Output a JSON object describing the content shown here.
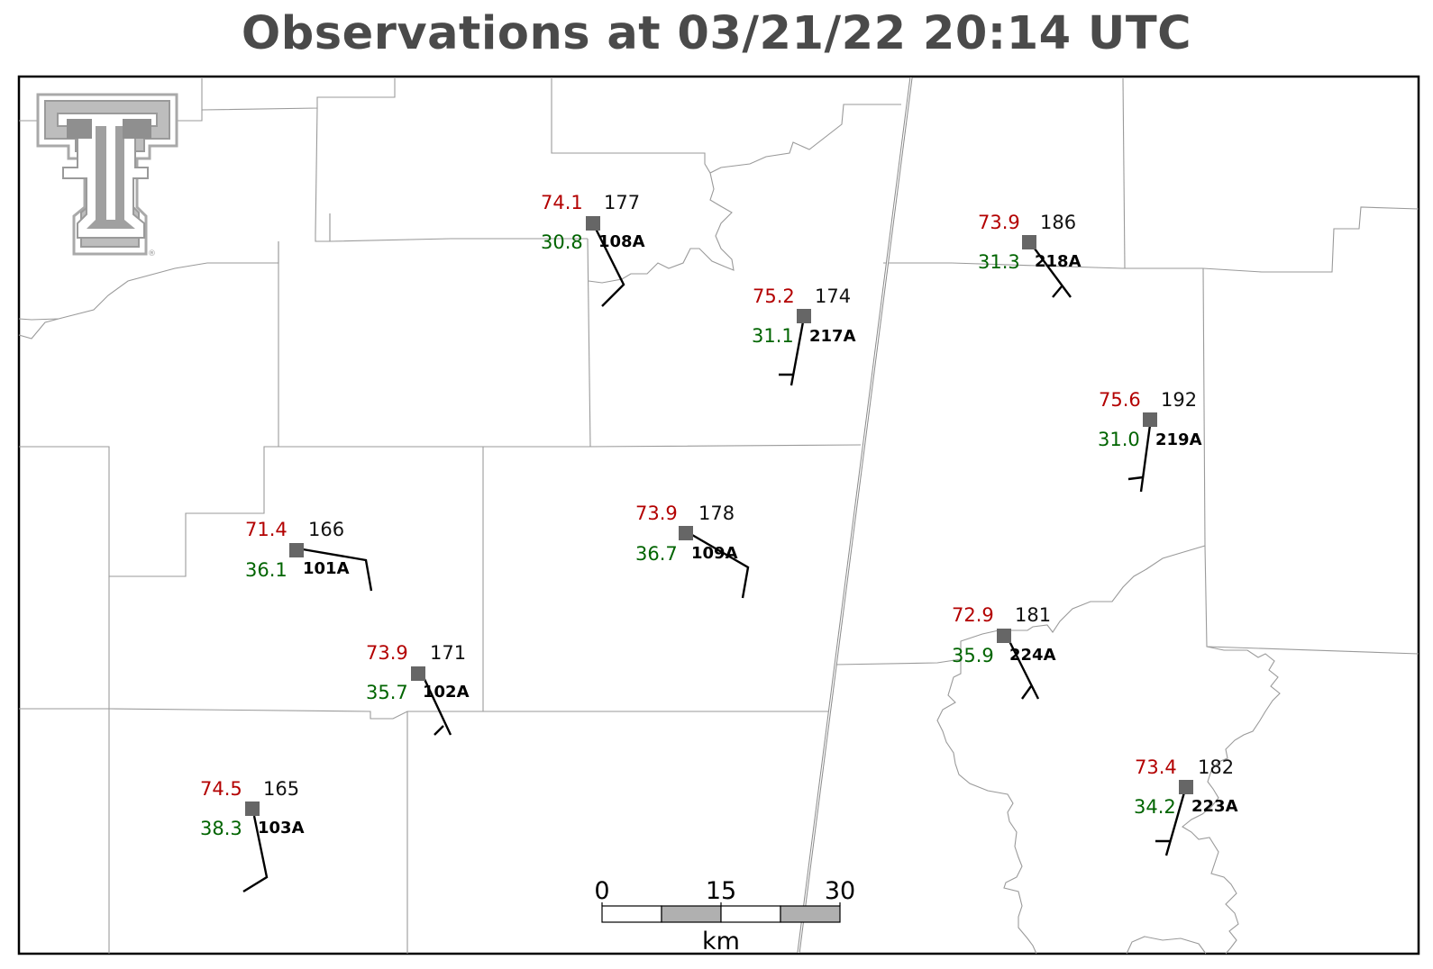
{
  "title": "Observations at 03/21/22 20:14 UTC",
  "logo": {
    "name": "Texas Tech Double T",
    "mark": "®"
  },
  "colors": {
    "temperature": "#b30000",
    "dewpoint": "#006400",
    "pressure": "#111111",
    "station_marker": "#666666",
    "title": "#4a4a4a"
  },
  "scale_bar": {
    "ticks": [
      "0",
      "15",
      "30"
    ],
    "unit": "km"
  },
  "stations": [
    {
      "id": "108A",
      "temp": "74.1",
      "dewpoint": "30.8",
      "pressure": "177"
    },
    {
      "id": "217A",
      "temp": "75.2",
      "dewpoint": "31.1",
      "pressure": "174"
    },
    {
      "id": "218A",
      "temp": "73.9",
      "dewpoint": "31.3",
      "pressure": "186"
    },
    {
      "id": "219A",
      "temp": "75.6",
      "dewpoint": "31.0",
      "pressure": "192"
    },
    {
      "id": "101A",
      "temp": "71.4",
      "dewpoint": "36.1",
      "pressure": "166"
    },
    {
      "id": "109A",
      "temp": "73.9",
      "dewpoint": "36.7",
      "pressure": "178"
    },
    {
      "id": "102A",
      "temp": "73.9",
      "dewpoint": "35.7",
      "pressure": "171"
    },
    {
      "id": "224A",
      "temp": "72.9",
      "dewpoint": "35.9",
      "pressure": "181"
    },
    {
      "id": "103A",
      "temp": "74.5",
      "dewpoint": "38.3",
      "pressure": "165"
    },
    {
      "id": "223A",
      "temp": "73.4",
      "dewpoint": "34.2",
      "pressure": "182"
    }
  ]
}
